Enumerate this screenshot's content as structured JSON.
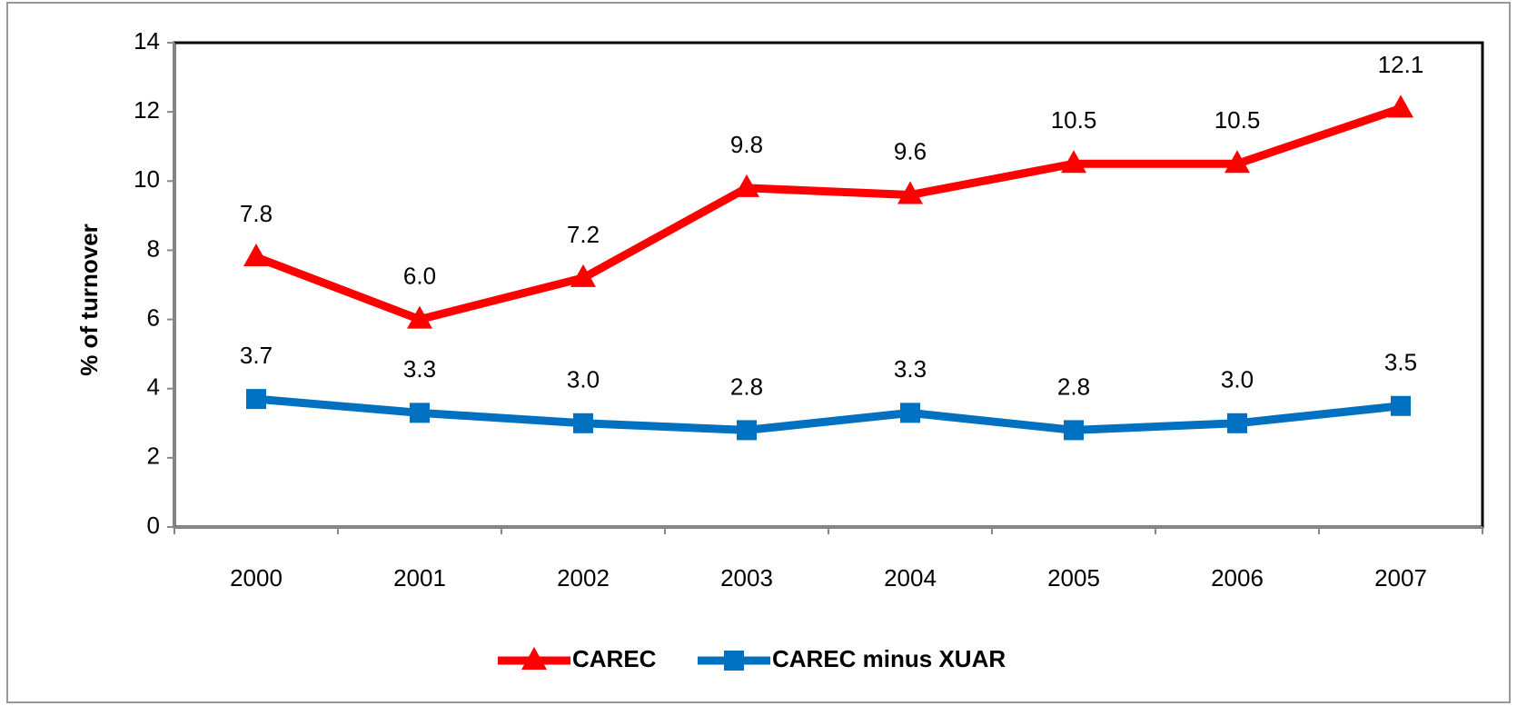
{
  "chart_data": {
    "type": "line",
    "y_label": "% of turnover",
    "categories": [
      "2000",
      "2001",
      "2002",
      "2003",
      "2004",
      "2005",
      "2006",
      "2007"
    ],
    "series": [
      {
        "name": "CAREC",
        "color": "#ff0000",
        "marker": "triangle",
        "values": [
          7.8,
          6.0,
          7.2,
          9.8,
          9.6,
          10.5,
          10.5,
          12.1
        ],
        "value_labels": [
          "7.8",
          "6.0",
          "7.2",
          "9.8",
          "9.6",
          "10.5",
          "10.5",
          "12.1"
        ]
      },
      {
        "name": "CAREC minus XUAR",
        "color": "#0070c0",
        "marker": "square",
        "values": [
          3.7,
          3.3,
          3.0,
          2.8,
          3.3,
          2.8,
          3.0,
          3.5
        ],
        "value_labels": [
          "3.7",
          "3.3",
          "3.0",
          "2.8",
          "3.3",
          "2.8",
          "3.0",
          "3.5"
        ]
      }
    ],
    "ylim": [
      0,
      14
    ],
    "yticks": [
      0,
      2,
      4,
      6,
      8,
      10,
      12,
      14
    ],
    "legend": "bottom"
  }
}
